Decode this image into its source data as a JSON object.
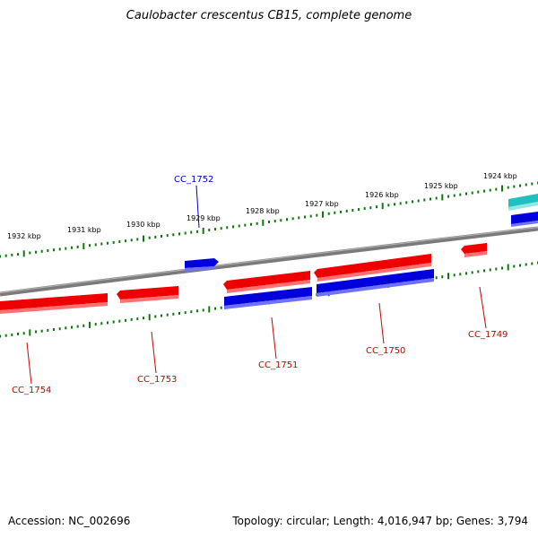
{
  "title": "Caulobacter crescentus CB15, complete genome",
  "footer": {
    "accession": "Accession: NC_002696",
    "summary": "Topology: circular; Length: 4,016,947 bp; Genes: 3,794"
  },
  "scale_labels": [
    "1932 kbp",
    "1931 kbp",
    "1930 kbp",
    "1929 kbp",
    "1928 kbp",
    "1927 kbp",
    "1926 kbp",
    "1925 kbp",
    "1924 kbp"
  ],
  "gene_labels": [
    "CC_1752",
    "CC_1754",
    "CC_1753",
    "CC_1751",
    "CC_1750",
    "CC_1749"
  ],
  "colors": {
    "forward_red": "#ee0000",
    "forward_red_light": "#ff6f6f",
    "reverse_blue": "#0000dd",
    "reverse_blue_light": "#7777ff",
    "other_cyan": "#20c0c0",
    "backbone": "#808080",
    "tick_green": "#117711",
    "label_red": "#cc0000",
    "label_blue": "#0000cc"
  }
}
